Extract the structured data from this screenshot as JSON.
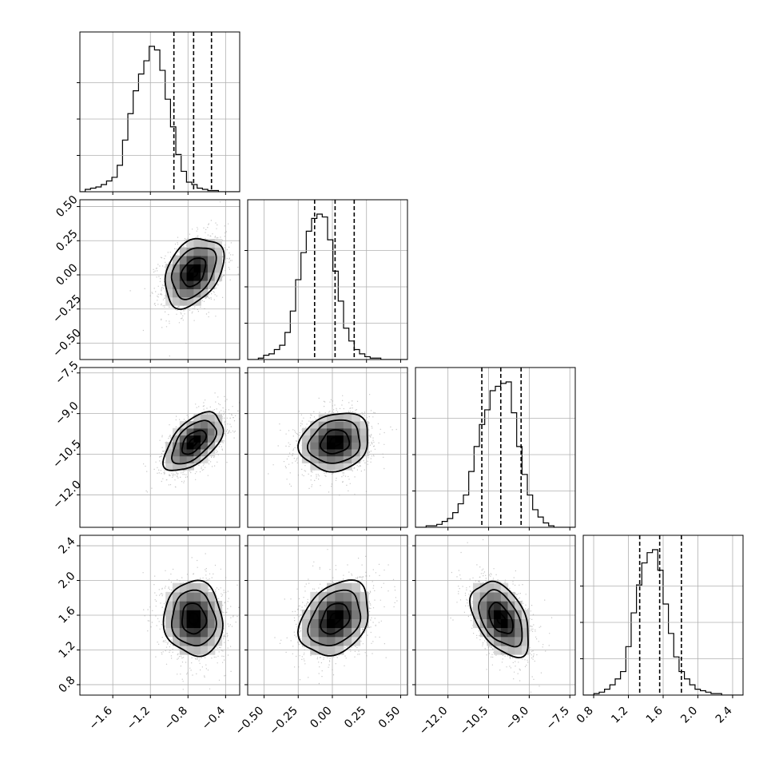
{
  "chart_data": {
    "type": "corner",
    "parameters": 4,
    "grid": true,
    "colors": {
      "contour": "#000000",
      "density": "#000000",
      "points": "#9a9a9a"
    },
    "parameter_ranges": [
      [
        -1.95,
        -0.25
      ],
      [
        -0.62,
        0.55
      ],
      [
        -13.2,
        -7.3
      ],
      [
        0.68,
        2.52
      ]
    ],
    "tick_values": [
      [
        -1.6,
        -1.2,
        -0.8,
        -0.4
      ],
      [
        -0.5,
        -0.25,
        0.0,
        0.25,
        0.5
      ],
      [
        -12.0,
        -10.5,
        -9.0,
        -7.5
      ],
      [
        0.8,
        1.2,
        1.6,
        2.0,
        2.4
      ]
    ],
    "tick_labels": [
      [
        "−1.6",
        "−1.2",
        "−0.8",
        "−0.4"
      ],
      [
        "−0.50",
        "−0.25",
        "0.00",
        "0.25",
        "0.50"
      ],
      [
        "−12.0",
        "−10.5",
        "−9.0",
        "−7.5"
      ],
      [
        "0.8",
        "1.2",
        "1.6",
        "2.0",
        "2.4"
      ]
    ],
    "quantiles": [
      [
        -0.95,
        -0.74,
        -0.55
      ],
      [
        -0.13,
        0.02,
        0.16
      ],
      [
        -10.75,
        -10.05,
        -9.3
      ],
      [
        1.33,
        1.56,
        1.81
      ]
    ],
    "marginals": [
      {
        "bin_start": -1.95,
        "bin_width": 0.0567,
        "counts": [
          0,
          2,
          3,
          4,
          6,
          9,
          12,
          22,
          43,
          65,
          84,
          98,
          109,
          121,
          118,
          101,
          77,
          54,
          31,
          17,
          8,
          6,
          3,
          2,
          1,
          1,
          0,
          0,
          0,
          0
        ]
      },
      {
        "bin_start": -0.62,
        "bin_width": 0.039,
        "counts": [
          0,
          0,
          1,
          3,
          4,
          7,
          10,
          19,
          34,
          56,
          75,
          90,
          99,
          102,
          100,
          84,
          62,
          41,
          22,
          13,
          7,
          4,
          2,
          1,
          1,
          0,
          0,
          0,
          0,
          0
        ]
      },
      {
        "bin_start": -13.2,
        "bin_width": 0.1967,
        "counts": [
          0,
          0,
          1,
          1,
          2,
          4,
          6,
          10,
          16,
          22,
          38,
          55,
          70,
          80,
          93,
          96,
          98,
          99,
          78,
          55,
          36,
          22,
          12,
          7,
          3,
          1,
          0,
          0,
          0,
          0
        ]
      },
      {
        "bin_start": 0.68,
        "bin_width": 0.0613,
        "counts": [
          0,
          0,
          1,
          2,
          4,
          7,
          11,
          16,
          33,
          56,
          75,
          90,
          97,
          99,
          85,
          62,
          42,
          26,
          16,
          11,
          7,
          4,
          3,
          2,
          1,
          1,
          0,
          0,
          0,
          0
        ]
      }
    ],
    "means": [
      -0.74,
      0.02,
      -10.05,
      1.56
    ],
    "std_devs": [
      0.16,
      0.13,
      0.55,
      0.22
    ],
    "correlations": [
      [
        1.0,
        0.35,
        0.55,
        -0.05
      ],
      [
        0.35,
        1.0,
        0.15,
        0.3
      ],
      [
        0.55,
        0.15,
        1.0,
        -0.45
      ],
      [
        -0.05,
        0.3,
        -0.45,
        1.0
      ]
    ]
  }
}
